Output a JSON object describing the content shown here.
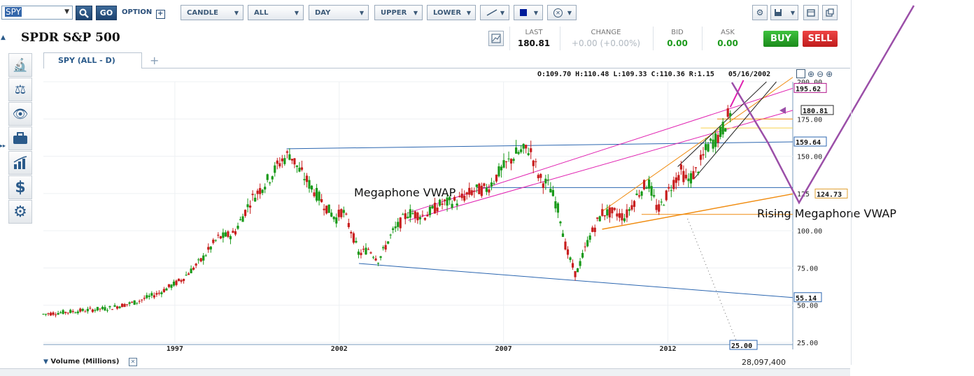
{
  "toolbar": {
    "symbol": "SPY",
    "go": "GO",
    "option": "OPTION",
    "chart_type": "CANDLE",
    "range": "ALL",
    "interval": "DAY",
    "upper": "UPPER",
    "lower": "LOWER"
  },
  "header": {
    "title": "SPDR S&P 500",
    "last_label": "LAST",
    "last_value": "180.81",
    "change_label": "CHANGE",
    "change_value": "+0.00 (+0.00%)",
    "bid_label": "BID",
    "bid_value": "0.00",
    "ask_label": "ASK",
    "ask_value": "0.00",
    "buy": "BUY",
    "sell": "SELL"
  },
  "tab": {
    "label": "SPY (ALL - D)",
    "add": "+"
  },
  "ohlc": {
    "text": "O:109.70  H:110.48  L:109.33  C:110.36  R:1.15",
    "date": "05/16/2002"
  },
  "annotations": {
    "megaphone": "Megaphone VWAP",
    "rising": "Rising Megaphone VWAP"
  },
  "volume": {
    "label": "Volume (Millions)",
    "value": "28,097,400"
  },
  "colors": {
    "up": "#1a9a1a",
    "down": "#c81e1e",
    "blue_line": "#2b66b0",
    "magenta": "#e020b0",
    "orange": "#f08c10",
    "purple": "#9b4fa8",
    "buy": "#1e9b1e",
    "sell": "#d42424"
  },
  "chart_data": {
    "type": "candlestick",
    "x_ticks": [
      "1997",
      "2002",
      "2007",
      "2012"
    ],
    "y_ticks": [
      25,
      50,
      75,
      100,
      125,
      150,
      175,
      200
    ],
    "y_tick_labels": [
      "25.00",
      "50.00",
      "75.00",
      "100.00",
      "125",
      "150.00",
      "175.00",
      "200.00"
    ],
    "ylim": [
      25,
      200
    ],
    "xlim": [
      1993.0,
      2015.8
    ],
    "price_path": [
      [
        1993.0,
        44
      ],
      [
        1994.0,
        46
      ],
      [
        1995.0,
        48
      ],
      [
        1995.8,
        52
      ],
      [
        1996.5,
        58
      ],
      [
        1997.2,
        67
      ],
      [
        1997.8,
        80
      ],
      [
        1998.3,
        95
      ],
      [
        1998.8,
        98
      ],
      [
        1999.3,
        120
      ],
      [
        1999.9,
        136
      ],
      [
        2000.2,
        146
      ],
      [
        2000.5,
        152
      ],
      [
        2000.8,
        140
      ],
      [
        2001.2,
        128
      ],
      [
        2001.6,
        116
      ],
      [
        2001.9,
        108
      ],
      [
        2002.1,
        114
      ],
      [
        2002.4,
        98
      ],
      [
        2002.6,
        84
      ],
      [
        2002.9,
        88
      ],
      [
        2003.2,
        80
      ],
      [
        2003.6,
        98
      ],
      [
        2004.1,
        112
      ],
      [
        2004.6,
        110
      ],
      [
        2005.1,
        118
      ],
      [
        2005.6,
        120
      ],
      [
        2006.1,
        127
      ],
      [
        2006.5,
        128
      ],
      [
        2006.9,
        140
      ],
      [
        2007.4,
        152
      ],
      [
        2007.8,
        155
      ],
      [
        2008.1,
        135
      ],
      [
        2008.4,
        130
      ],
      [
        2008.7,
        112
      ],
      [
        2008.9,
        88
      ],
      [
        2009.2,
        70
      ],
      [
        2009.6,
        95
      ],
      [
        2010.0,
        112
      ],
      [
        2010.4,
        112
      ],
      [
        2010.7,
        109
      ],
      [
        2011.1,
        125
      ],
      [
        2011.4,
        133
      ],
      [
        2011.7,
        113
      ],
      [
        2012.1,
        130
      ],
      [
        2012.4,
        140
      ],
      [
        2012.6,
        133
      ],
      [
        2012.9,
        141
      ],
      [
        2013.2,
        156
      ],
      [
        2013.6,
        165
      ],
      [
        2013.9,
        180
      ]
    ],
    "price_labels": [
      {
        "value": 195.62,
        "text": "195.62"
      },
      {
        "value": 180.81,
        "text": "180.81"
      },
      {
        "value": 159.64,
        "text": "159.64"
      },
      {
        "value": 124.73,
        "text": "124.73"
      },
      {
        "value": 55.14,
        "text": "55.14"
      },
      {
        "value": 25.0,
        "text": "25.00"
      }
    ]
  }
}
